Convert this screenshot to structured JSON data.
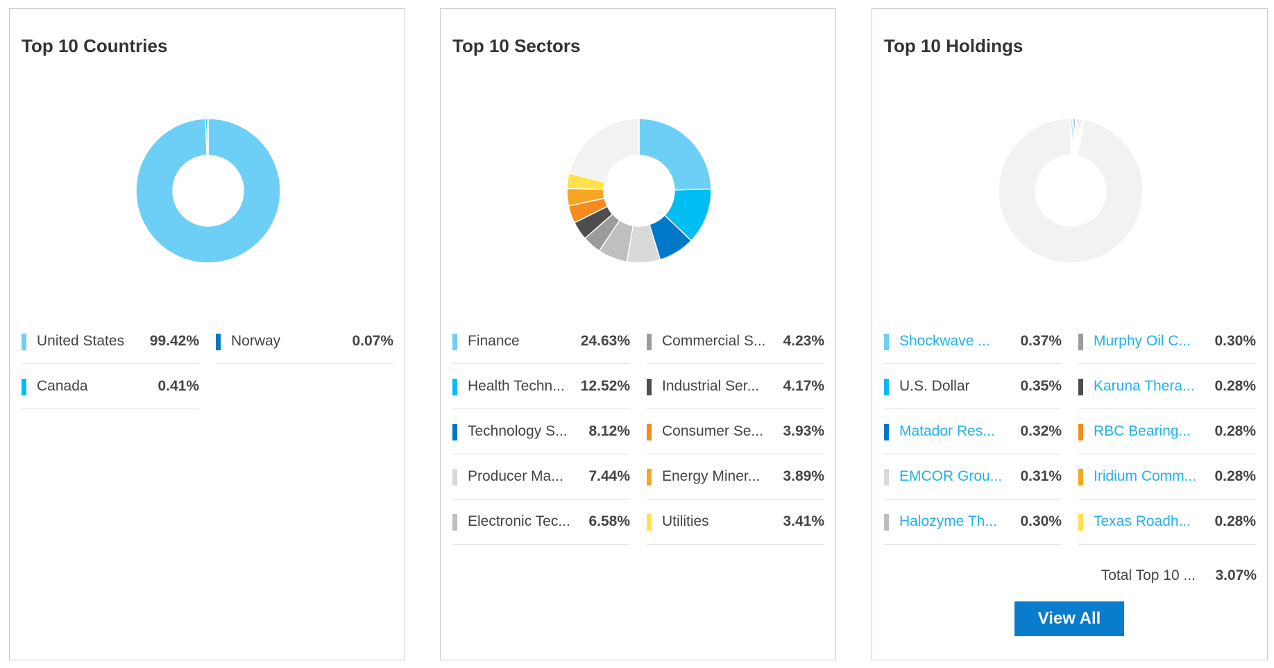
{
  "colors": {
    "series": [
      "#6dcff6",
      "#00bdf2",
      "#0078c9",
      "#d9d9d9",
      "#bfbfbf",
      "#9b9b9b",
      "#4d4d4d",
      "#f58a1f",
      "#f5a623",
      "#ffe14f"
    ],
    "empty": "#f2f2f2",
    "link": "#20b2e8",
    "button": "#0a7ccc"
  },
  "cards": {
    "countries": {
      "title": "Top 10 Countries",
      "legend": [
        {
          "label": "United States",
          "value": "99.42%"
        },
        {
          "label": "Norway",
          "value": "0.07%"
        },
        {
          "label": "Canada",
          "value": "0.41%"
        }
      ]
    },
    "sectors": {
      "title": "Top 10 Sectors",
      "legend": [
        {
          "label": "Finance",
          "value": "24.63%"
        },
        {
          "label": "Commercial S...",
          "value": "4.23%"
        },
        {
          "label": "Health Techn...",
          "value": "12.52%"
        },
        {
          "label": "Industrial Ser...",
          "value": "4.17%"
        },
        {
          "label": "Technology S...",
          "value": "8.12%"
        },
        {
          "label": "Consumer Se...",
          "value": "3.93%"
        },
        {
          "label": "Producer Ma...",
          "value": "7.44%"
        },
        {
          "label": "Energy Miner...",
          "value": "3.89%"
        },
        {
          "label": "Electronic Tec...",
          "value": "6.58%"
        },
        {
          "label": "Utilities",
          "value": "3.41%"
        }
      ]
    },
    "holdings": {
      "title": "Top 10 Holdings",
      "legend": [
        {
          "label": "Shockwave ...",
          "value": "0.37%"
        },
        {
          "label": "Murphy Oil C...",
          "value": "0.30%"
        },
        {
          "label": "U.S. Dollar",
          "value": "0.35%"
        },
        {
          "label": "Karuna Thera...",
          "value": "0.28%"
        },
        {
          "label": "Matador Res...",
          "value": "0.32%"
        },
        {
          "label": "RBC Bearing...",
          "value": "0.28%"
        },
        {
          "label": "EMCOR Grou...",
          "value": "0.31%"
        },
        {
          "label": "Iridium Comm...",
          "value": "0.28%"
        },
        {
          "label": "Halozyme Th...",
          "value": "0.30%"
        },
        {
          "label": "Texas Roadh...",
          "value": "0.28%"
        }
      ],
      "total_label": "Total Top 10 ...",
      "total_value": "3.07%",
      "view_all_label": "View All"
    }
  },
  "chart_data": [
    {
      "type": "pie",
      "title": "Top 10 Countries",
      "categories": [
        "United States",
        "Canada",
        "Norway"
      ],
      "values": [
        99.42,
        0.41,
        0.07
      ]
    },
    {
      "type": "pie",
      "title": "Top 10 Sectors",
      "categories": [
        "Finance",
        "Health Techn...",
        "Technology S...",
        "Producer Ma...",
        "Electronic Tec...",
        "Commercial S...",
        "Industrial Ser...",
        "Consumer Se...",
        "Energy Miner...",
        "Utilities"
      ],
      "values": [
        24.63,
        12.52,
        8.12,
        7.44,
        6.58,
        4.23,
        4.17,
        3.93,
        3.89,
        3.41
      ]
    },
    {
      "type": "pie",
      "title": "Top 10 Holdings",
      "categories": [
        "Shockwave ...",
        "U.S. Dollar",
        "Matador Res...",
        "EMCOR Grou...",
        "Halozyme Th...",
        "Murphy Oil C...",
        "Karuna Thera...",
        "RBC Bearing...",
        "Iridium Comm...",
        "Texas Roadh..."
      ],
      "values": [
        0.37,
        0.35,
        0.32,
        0.31,
        0.3,
        0.3,
        0.28,
        0.28,
        0.28,
        0.28
      ]
    }
  ]
}
